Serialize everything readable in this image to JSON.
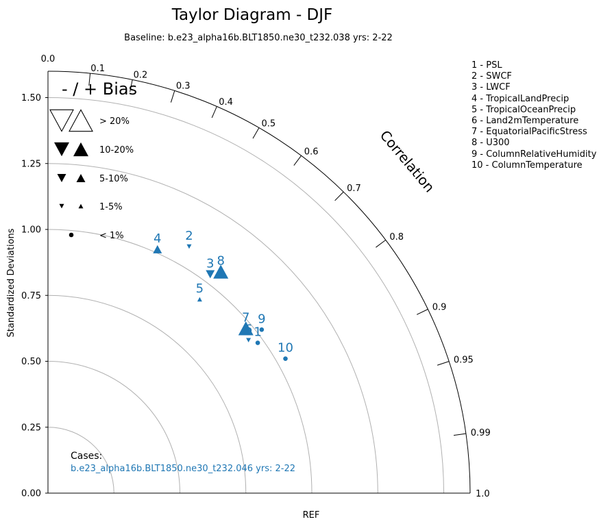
{
  "chart_data": {
    "type": "scatter",
    "subtype": "taylor-diagram",
    "title": "Taylor Diagram - DJF",
    "subtitle": "Baseline: b.e23_alpha16b.BLT1850.ne30_t232.038  yrs: 2-22",
    "ylabel": "Standardized Deviations",
    "xlabel": "REF",
    "angular_label": "Correlation",
    "std_range": [
      0,
      1.6
    ],
    "std_ticks": [
      "0.00",
      "0.25",
      "0.50",
      "0.75",
      "1.00",
      "1.25",
      "1.50"
    ],
    "std_tick_values": [
      0,
      0.25,
      0.5,
      0.75,
      1.0,
      1.25,
      1.5
    ],
    "grid_arcs": [
      0.25,
      0.5,
      0.75,
      1.0,
      1.25,
      1.5
    ],
    "correlation_ticks": [
      "0.0",
      "0.1",
      "0.2",
      "0.3",
      "0.4",
      "0.5",
      "0.6",
      "0.7",
      "0.8",
      "0.9",
      "0.95",
      "0.99",
      "1.0"
    ],
    "correlation_tick_values": [
      0.0,
      0.1,
      0.2,
      0.3,
      0.4,
      0.5,
      0.6,
      0.7,
      0.8,
      0.9,
      0.95,
      0.99,
      1.0
    ],
    "bias_legend": {
      "title": "- / + Bias",
      "entries": [
        {
          "label": "> 20%",
          "size": "xl"
        },
        {
          "label": "10-20%",
          "size": "l"
        },
        {
          "label": "5-10%",
          "size": "m"
        },
        {
          "label": "1-5%",
          "size": "s"
        },
        {
          "label": "< 1%",
          "size": "dot"
        }
      ]
    },
    "variables": [
      "1 - PSL",
      "2 - SWCF",
      "3 - LWCF",
      "4 - TropicalLandPrecip",
      "5 - TropicalOceanPrecip",
      "6 - Land2mTemperature",
      "7 - EquatorialPacificStress",
      "8 - U300",
      "9 - ColumnRelativeHumidity",
      "10 - ColumnTemperature"
    ],
    "cases_label": "Cases:",
    "case_name": "b.e23_alpha16b.BLT1850.ne30_t232.046  yrs: 2-22",
    "series_color": "#1f77b4",
    "points": [
      {
        "id": "1",
        "x": 0.795,
        "y": 0.57,
        "bias": "dot"
      },
      {
        "id": "2",
        "x": 0.535,
        "y": 0.935,
        "bias": "s-down"
      },
      {
        "id": "3",
        "x": 0.615,
        "y": 0.83,
        "bias": "m-down"
      },
      {
        "id": "4",
        "x": 0.415,
        "y": 0.925,
        "bias": "m-up"
      },
      {
        "id": "5",
        "x": 0.575,
        "y": 0.735,
        "bias": "s-up"
      },
      {
        "id": "6",
        "x": 0.76,
        "y": 0.58,
        "bias": "s-down"
      },
      {
        "id": "7",
        "x": 0.75,
        "y": 0.625,
        "bias": "l-up"
      },
      {
        "id": "8",
        "x": 0.655,
        "y": 0.84,
        "bias": "l-up"
      },
      {
        "id": "9",
        "x": 0.81,
        "y": 0.62,
        "bias": "dot"
      },
      {
        "id": "10",
        "x": 0.9,
        "y": 0.51,
        "bias": "dot"
      }
    ]
  }
}
